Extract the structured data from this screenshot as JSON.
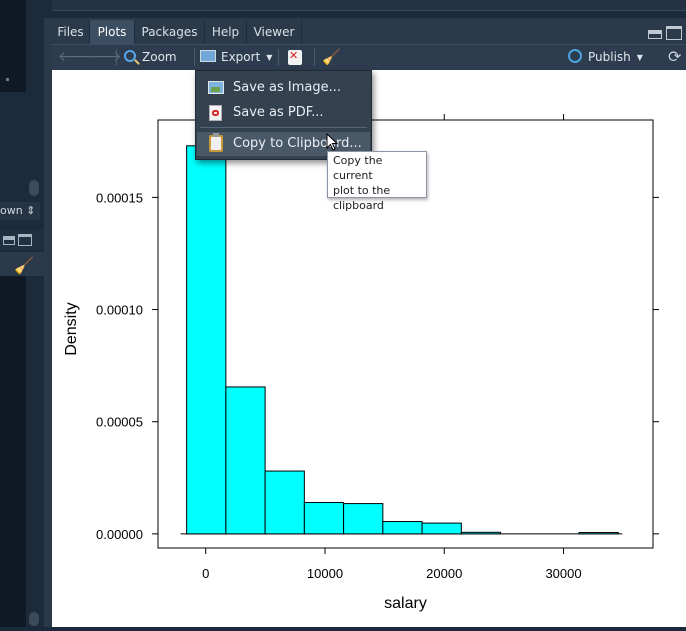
{
  "left_panel": {
    "dropdown_text": "own ⇕"
  },
  "tabs": [
    {
      "label": "Files"
    },
    {
      "label": "Plots"
    },
    {
      "label": "Packages"
    },
    {
      "label": "Help"
    },
    {
      "label": "Viewer"
    }
  ],
  "active_tab": "Plots",
  "toolbar": {
    "zoom_label": "Zoom",
    "export_label": "Export",
    "publish_label": "Publish"
  },
  "export_menu": {
    "items": [
      {
        "label": "Save as Image..."
      },
      {
        "label": "Save as PDF..."
      },
      {
        "label": "Copy to Clipboard..."
      }
    ]
  },
  "tooltip": {
    "lines": [
      "Copy the current",
      "plot to the",
      "clipboard"
    ]
  },
  "colors": {
    "bar_fill": "#00ffff",
    "bar_stroke": "#000000",
    "pane_bg": "#2b3a4a",
    "menu_bg": "#34414f"
  },
  "chart_data": {
    "type": "bar",
    "xlabel": "salary",
    "ylabel": "Density",
    "xlim": [
      -4000,
      37500
    ],
    "ylim": [
      -6.3e-06,
      0.0001845
    ],
    "x_ticks": [
      {
        "value": 0,
        "label": "0"
      },
      {
        "value": 10000,
        "label": "10000"
      },
      {
        "value": 20000,
        "label": "20000"
      },
      {
        "value": 30000,
        "label": "30000"
      }
    ],
    "y_ticks": [
      {
        "value": 0,
        "label": "0.00000"
      },
      {
        "value": 5e-05,
        "label": "0.00005"
      },
      {
        "value": 0.0001,
        "label": "0.00010"
      },
      {
        "value": 0.00015,
        "label": "0.00015"
      }
    ],
    "bins": [
      {
        "x0": -1600,
        "x1": 1690,
        "density": 0.000173
      },
      {
        "x0": 1690,
        "x1": 4980,
        "density": 6.55e-05
      },
      {
        "x0": 4980,
        "x1": 8270,
        "density": 2.8e-05
      },
      {
        "x0": 8270,
        "x1": 11560,
        "density": 1.4e-05
      },
      {
        "x0": 11560,
        "x1": 14850,
        "density": 1.35e-05
      },
      {
        "x0": 14850,
        "x1": 18140,
        "density": 5.5e-06
      },
      {
        "x0": 18140,
        "x1": 21430,
        "density": 4.8e-06
      },
      {
        "x0": 21430,
        "x1": 24720,
        "density": 7e-07
      },
      {
        "x0": 24720,
        "x1": 28010,
        "density": 0.0
      },
      {
        "x0": 28010,
        "x1": 31300,
        "density": 0.0
      },
      {
        "x0": 31300,
        "x1": 34590,
        "density": 6e-07
      }
    ]
  }
}
